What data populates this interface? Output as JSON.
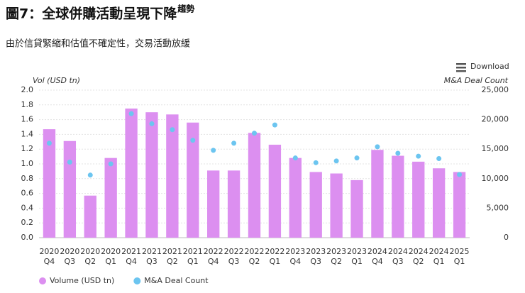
{
  "chart_data": {
    "type": "bar_dot",
    "title": "圖7：全球併購活動呈現下降",
    "title_sup": "趨勢",
    "subtitle": "由於信貸緊縮和估值不確定性，交易活動放緩",
    "download": "Download",
    "ylabel": "Vol (USD tn)",
    "y2label": "M&A Deal Count",
    "categories": [
      [
        "2020",
        "Q4"
      ],
      [
        "2020",
        "Q3"
      ],
      [
        "2020",
        "Q2"
      ],
      [
        "2020",
        "Q1"
      ],
      [
        "2021",
        "Q4"
      ],
      [
        "2021",
        "Q3"
      ],
      [
        "2021",
        "Q2"
      ],
      [
        "2021",
        "Q1"
      ],
      [
        "2022",
        "Q4"
      ],
      [
        "2022",
        "Q3"
      ],
      [
        "2022",
        "Q2"
      ],
      [
        "2022",
        "Q1"
      ],
      [
        "2023",
        "Q4"
      ],
      [
        "2023",
        "Q3"
      ],
      [
        "2023",
        "Q2"
      ],
      [
        "2023",
        "Q1"
      ],
      [
        "2024",
        "Q4"
      ],
      [
        "2024",
        "Q3"
      ],
      [
        "2024",
        "Q2"
      ],
      [
        "2024",
        "Q1"
      ],
      [
        "2025",
        "Q1"
      ]
    ],
    "series": [
      {
        "name": "Volume (USD tn)",
        "color": "#dc8ff0",
        "kind": "bar",
        "values": [
          1.47,
          1.31,
          0.57,
          1.08,
          1.75,
          1.7,
          1.67,
          1.56,
          0.91,
          0.91,
          1.42,
          1.26,
          1.08,
          0.89,
          0.87,
          0.78,
          1.19,
          1.11,
          1.03,
          0.94,
          0.89
        ]
      },
      {
        "name": "M&A Deal Count",
        "color": "#6cc5f0",
        "kind": "dot",
        "axis": "y2",
        "values": [
          16000,
          12800,
          10600,
          12500,
          21000,
          19300,
          18300,
          16500,
          14800,
          16000,
          17700,
          19100,
          13500,
          12700,
          13000,
          13500,
          15400,
          14300,
          13800,
          13400,
          10700
        ]
      }
    ],
    "ylim": [
      0,
      2
    ],
    "yticks": [
      {
        "value": 0,
        "label": "0.0"
      },
      0.2,
      0.4,
      0.6,
      0.8,
      {
        "value": 1,
        "label": "1.0"
      },
      1.2,
      1.4,
      1.6,
      1.8,
      {
        "value": 2,
        "label": "2.0"
      }
    ],
    "y2lim": [
      0,
      25000
    ],
    "y2ticks": [
      0,
      {
        "value": 5000,
        "label": "5,000"
      },
      {
        "value": 10000,
        "label": "10,000"
      },
      {
        "value": 15000,
        "label": "15,000"
      },
      {
        "value": 20000,
        "label": "20,000"
      },
      {
        "value": 25000,
        "label": "25,000"
      }
    ],
    "grid": true
  }
}
